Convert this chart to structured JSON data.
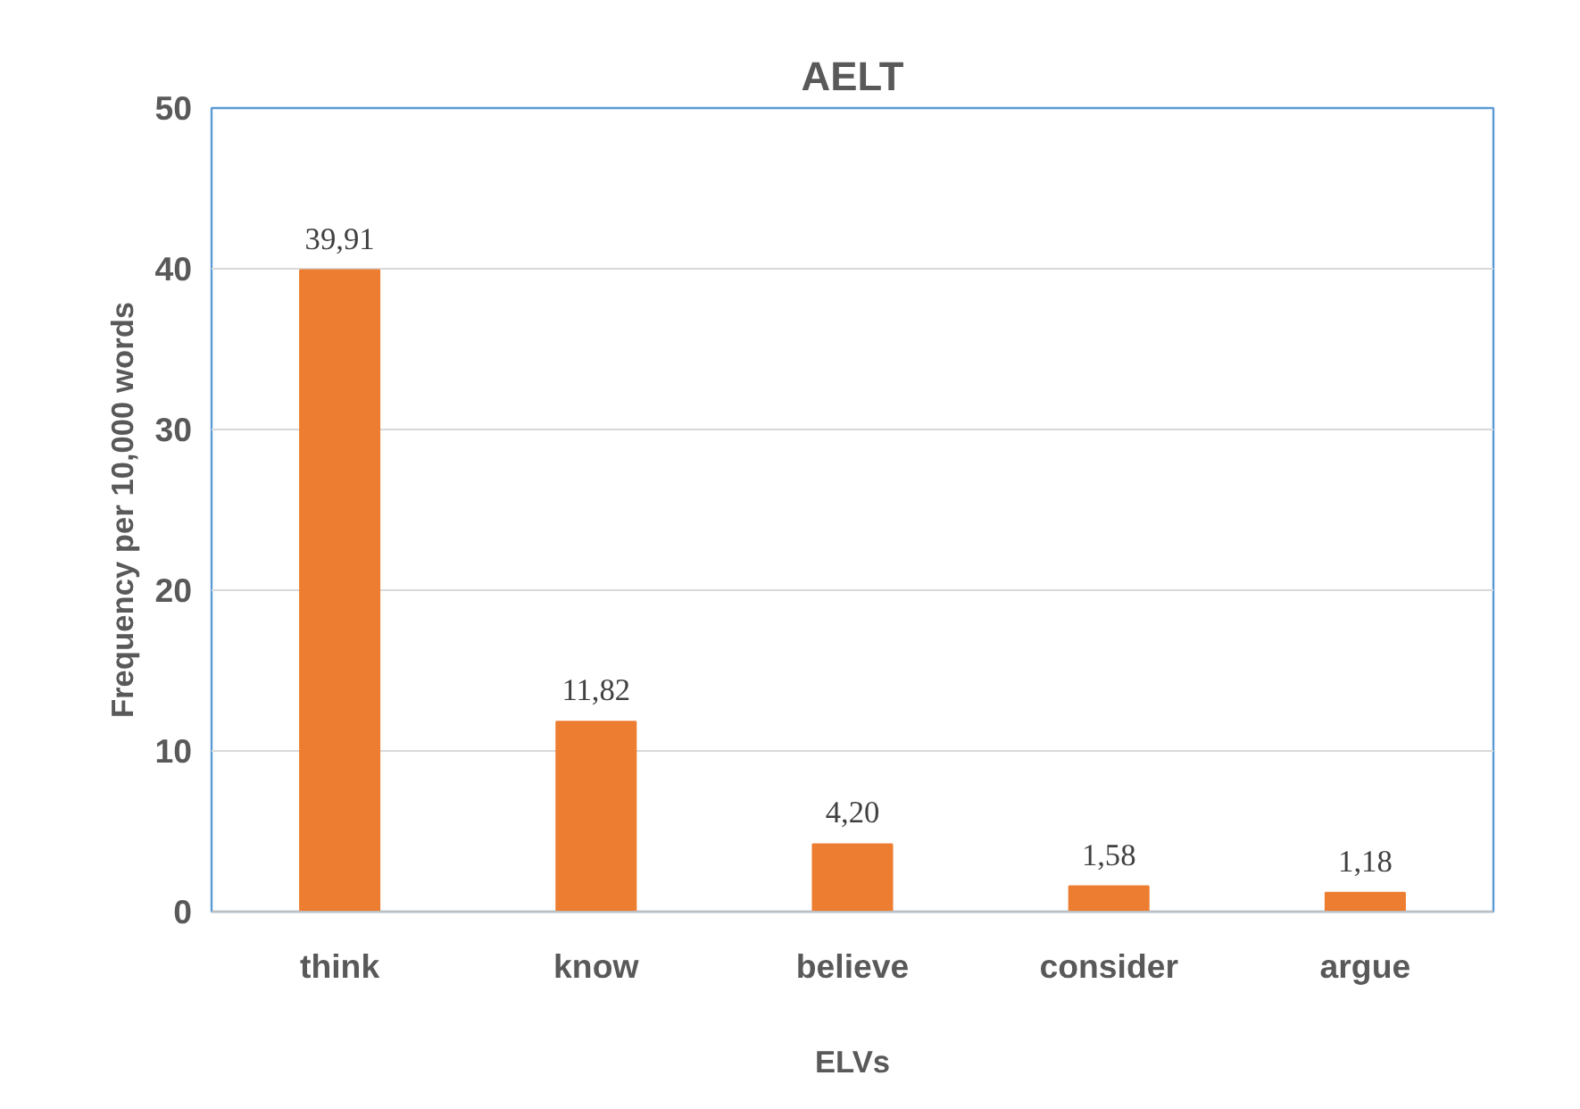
{
  "chart_data": {
    "type": "bar",
    "title": "AELT",
    "xlabel": "ELVs",
    "ylabel": "Frequency per 10,000 words",
    "categories": [
      "think",
      "know",
      "believe",
      "consider",
      "argue"
    ],
    "values": [
      39.91,
      11.82,
      4.2,
      1.58,
      1.18
    ],
    "value_labels": [
      "39,91",
      "11,82",
      "4,20",
      "1,58",
      "1,18"
    ],
    "color": "#ed7d31",
    "ylim": [
      0,
      50
    ],
    "yticks": [
      0,
      10,
      20,
      30,
      40,
      50
    ],
    "grid": "y"
  }
}
